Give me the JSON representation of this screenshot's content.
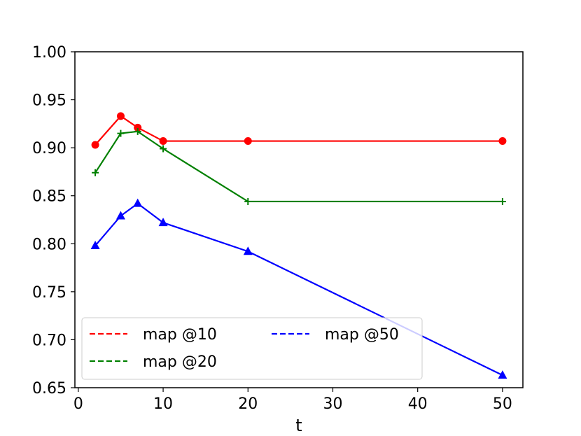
{
  "chart_data": {
    "type": "line",
    "title": "",
    "xlabel": "t",
    "ylabel": "",
    "x": [
      2,
      5,
      7,
      10,
      20,
      50
    ],
    "xlim": [
      -0.4,
      52.4
    ],
    "ylim": [
      0.65,
      1.0
    ],
    "xticks": [
      0,
      10,
      20,
      30,
      40,
      50
    ],
    "xtick_labels": [
      "0",
      "10",
      "20",
      "30",
      "40",
      "50"
    ],
    "yticks": [
      0.65,
      0.7,
      0.75,
      0.8,
      0.85,
      0.9,
      0.95,
      1.0
    ],
    "ytick_labels": [
      "0.65",
      "0.70",
      "0.75",
      "0.80",
      "0.85",
      "0.90",
      "0.95",
      "1.00"
    ],
    "grid": false,
    "legend_position": "lower-left",
    "legend_columns": 2,
    "series": [
      {
        "name": "map @10",
        "color": "#ff0000",
        "marker": "circle",
        "legend_style": "dashed",
        "values": [
          0.903,
          0.933,
          0.921,
          0.907,
          0.907,
          0.907
        ]
      },
      {
        "name": "map @20",
        "color": "#008000",
        "marker": "plus",
        "legend_style": "dashed",
        "values": [
          0.874,
          0.915,
          0.917,
          0.899,
          0.844,
          0.844
        ]
      },
      {
        "name": "map @50",
        "color": "#0000ff",
        "marker": "triangle",
        "legend_style": "dashed",
        "values": [
          0.798,
          0.829,
          0.842,
          0.822,
          0.792,
          0.663
        ]
      }
    ]
  }
}
